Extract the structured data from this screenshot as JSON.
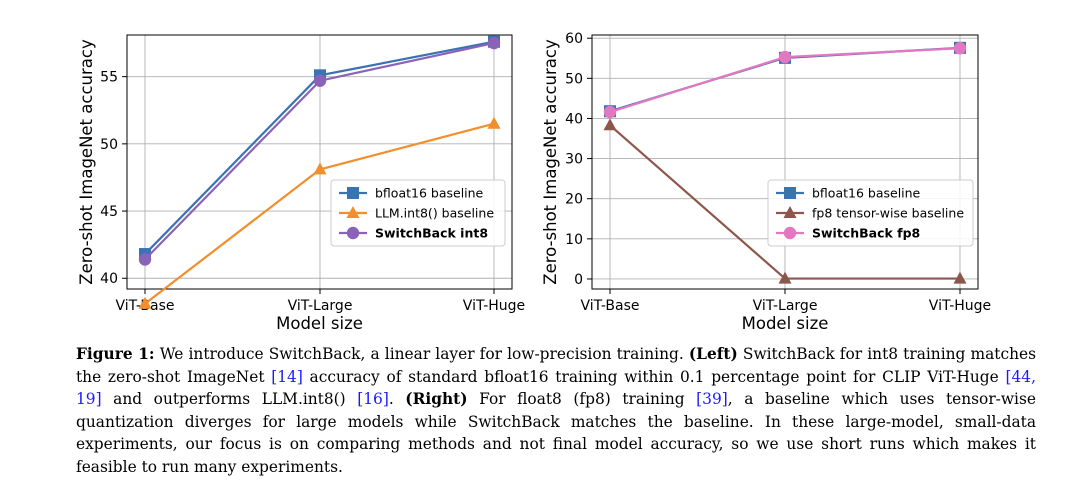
{
  "chart_data": [
    {
      "type": "line",
      "categories": [
        "ViT-Base",
        "ViT-Large",
        "ViT-Huge"
      ],
      "xlabel": "Model size",
      "ylabel": "Zero-shot ImageNet accuracy",
      "ylim": [
        39.2,
        58.1
      ],
      "yticks": [
        40,
        45,
        50,
        55
      ],
      "grid": true,
      "legend_position": "lower-right",
      "series": [
        {
          "name": "bfloat16 baseline",
          "values": [
            41.8,
            55.1,
            57.6
          ],
          "color": "#3a73b4",
          "marker": "square",
          "bold": false
        },
        {
          "name": "LLM.int8() baseline",
          "values": [
            38.1,
            48.1,
            51.5
          ],
          "color": "#f28e2b",
          "marker": "triangle",
          "bold": false
        },
        {
          "name": "SwitchBack int8",
          "values": [
            41.4,
            54.7,
            57.5
          ],
          "color": "#8a63b8",
          "marker": "circle",
          "bold": true
        }
      ]
    },
    {
      "type": "line",
      "categories": [
        "ViT-Base",
        "ViT-Large",
        "ViT-Huge"
      ],
      "xlabel": "Model size",
      "ylabel": "Zero-shot ImageNet accuracy",
      "ylim": [
        -2.5,
        60.8
      ],
      "yticks": [
        0,
        10,
        20,
        30,
        40,
        50,
        60
      ],
      "grid": true,
      "legend_position": "lower-right",
      "series": [
        {
          "name": "bfloat16 baseline",
          "values": [
            41.8,
            55.1,
            57.6
          ],
          "color": "#3a73b4",
          "marker": "square",
          "bold": false
        },
        {
          "name": "fp8 tensor-wise baseline",
          "values": [
            38.3,
            0.1,
            0.1
          ],
          "color": "#8c564b",
          "marker": "triangle",
          "bold": false
        },
        {
          "name": "SwitchBack fp8",
          "values": [
            41.6,
            55.3,
            57.5
          ],
          "color": "#e377c2",
          "marker": "circle",
          "bold": true
        }
      ]
    }
  ],
  "caption": {
    "label": "Figure 1:",
    "part1": " We introduce SwitchBack, a linear layer for low-precision training. ",
    "left_tag": "(Left)",
    "part2": "  SwitchBack for int8 training matches the zero-shot ImageNet ",
    "cite1": "[14]",
    "part3": " accuracy of standard bfloat16 training within 0.1 percentage point for CLIP ViT-Huge ",
    "cite2": "[44, 19]",
    "part4": " and outperforms LLM.int8() ",
    "cite3": "[16]",
    "part5": ". ",
    "right_tag": "(Right)",
    "part6": " For float8 (fp8) training ",
    "cite4": "[39]",
    "part7": ", a baseline which uses tensor-wise quantization diverges for large models while SwitchBack matches the baseline. In these large-model, small-data experiments, our focus is on comparing methods and not final model accuracy, so we use short runs which makes it feasible to run many experiments."
  }
}
